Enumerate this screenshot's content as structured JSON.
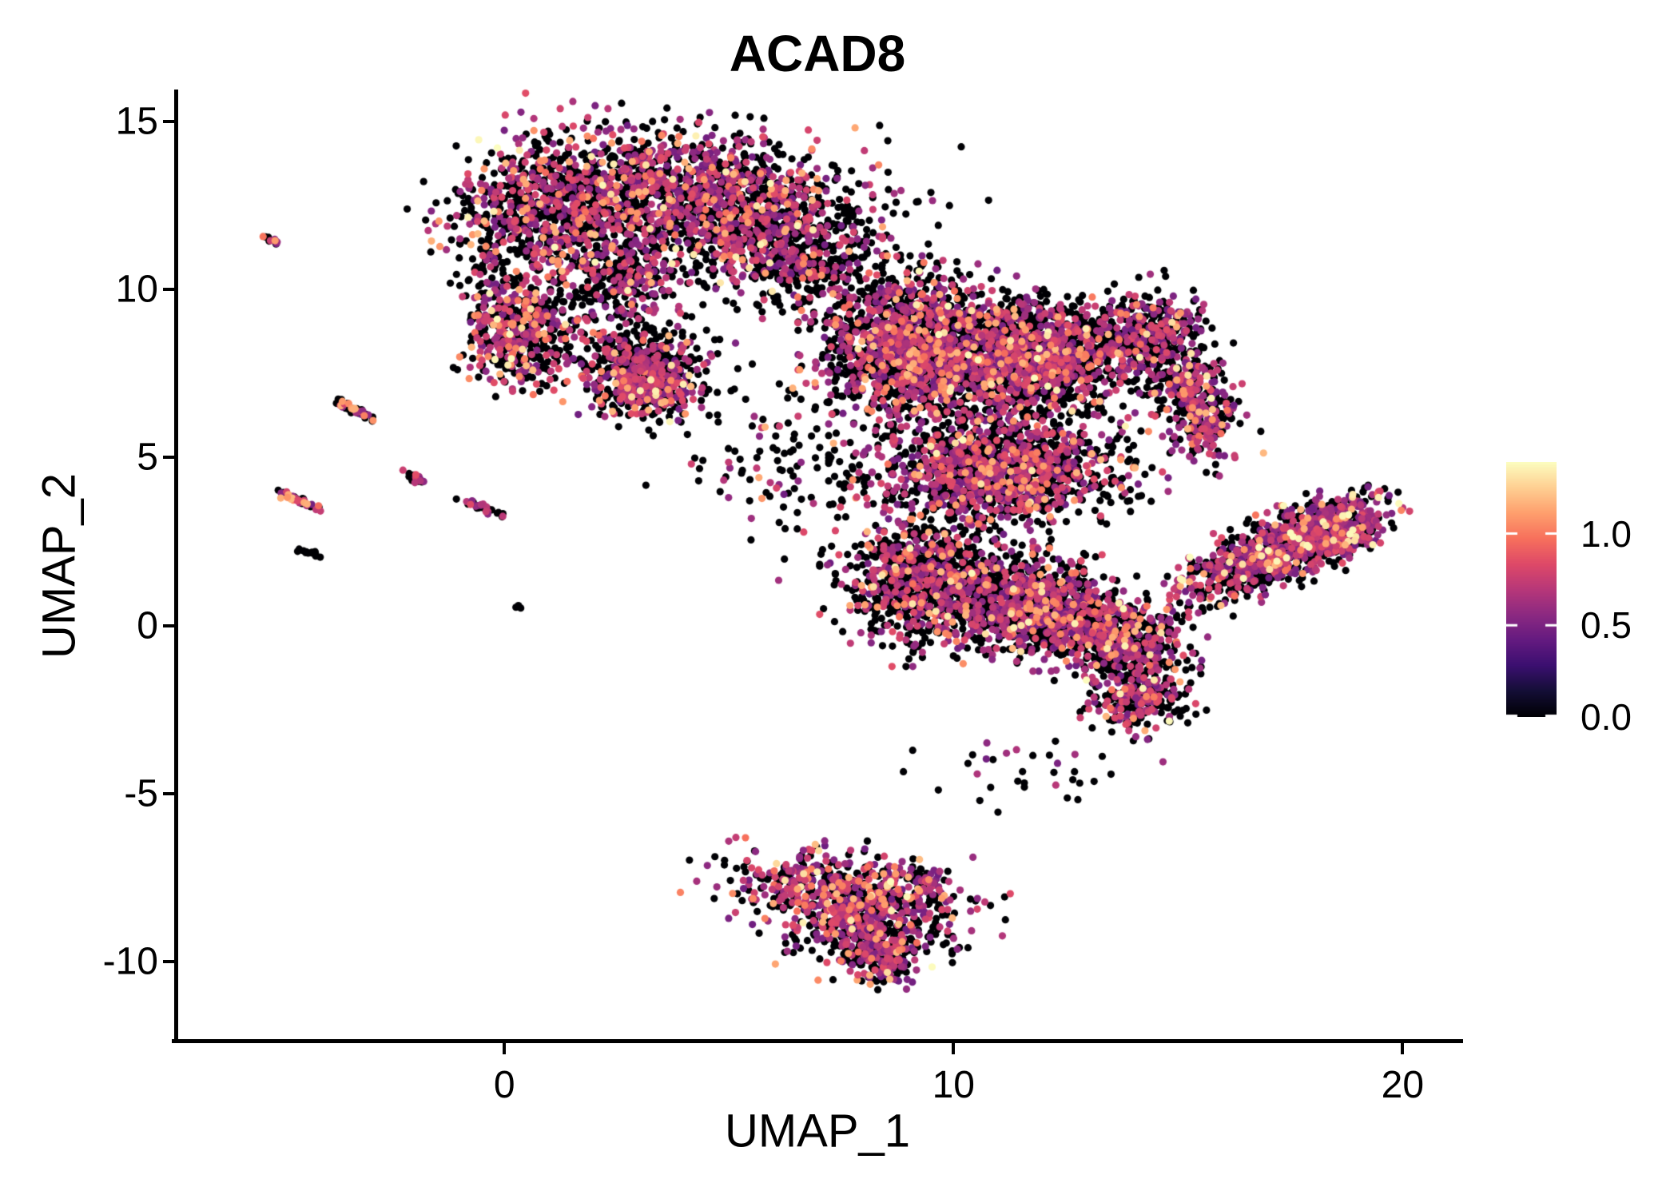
{
  "title": "ACAD8",
  "axes": {
    "x": {
      "label": "UMAP_1",
      "ticks": [
        0,
        10,
        20
      ]
    },
    "y": {
      "label": "UMAP_2",
      "ticks": [
        15,
        10,
        5,
        0,
        -5,
        -10
      ]
    }
  },
  "legend": {
    "tick_labels": [
      "1.0",
      "0.5",
      "0.0"
    ],
    "tick_values": [
      1.0,
      0.5,
      0.0
    ],
    "max_value": 1.39,
    "colormap": "magma"
  },
  "chart_data": {
    "type": "scatter",
    "title": "ACAD8",
    "xlabel": "UMAP_1",
    "ylabel": "UMAP_2",
    "xlim": [
      -7.37,
      21.31
    ],
    "ylim": [
      -12.38,
      15.95
    ],
    "grid": false,
    "legend_position": "right",
    "point_radius": 4.6,
    "color_scale": {
      "value_range": [
        0,
        1.39
      ],
      "stops": [
        [
          0.0,
          [
            0,
            0,
            4
          ]
        ],
        [
          0.1,
          [
            20,
            14,
            54
          ]
        ],
        [
          0.2,
          [
            59,
            15,
            112
          ]
        ],
        [
          0.3,
          [
            100,
            26,
            128
          ]
        ],
        [
          0.4,
          [
            140,
            41,
            129
          ]
        ],
        [
          0.5,
          [
            183,
            55,
            121
          ]
        ],
        [
          0.6,
          [
            222,
            73,
            104
          ]
        ],
        [
          0.7,
          [
            247,
            112,
            92
          ]
        ],
        [
          0.8,
          [
            254,
            159,
            109
          ]
        ],
        [
          0.9,
          [
            254,
            207,
            146
          ]
        ],
        [
          1.0,
          [
            252,
            253,
            191
          ]
        ]
      ]
    },
    "expression_bins": {
      "zero": [
        0,
        0
      ],
      "mid": [
        0.45,
        0.85
      ],
      "high": [
        0.95,
        1.2
      ],
      "top": [
        1.28,
        1.39
      ]
    },
    "seed": 42,
    "clusters": [
      {
        "name": "top-main-left",
        "cx": 1.0,
        "cy": 12.3,
        "sx": 1.15,
        "sy": 1.1,
        "rot": 0,
        "n": 900,
        "mix": [
          0.52,
          0.4,
          0.07,
          0.01
        ]
      },
      {
        "name": "top-main-right",
        "cx": 4.3,
        "cy": 12.9,
        "sx": 1.5,
        "sy": 0.85,
        "rot": -8,
        "n": 1100,
        "mix": [
          0.52,
          0.4,
          0.07,
          0.01
        ]
      },
      {
        "name": "top-right-lobe",
        "cx": 5.9,
        "cy": 11.4,
        "sx": 0.9,
        "sy": 0.8,
        "rot": 0,
        "n": 480,
        "mix": [
          0.6,
          0.34,
          0.05,
          0.01
        ]
      },
      {
        "name": "top-lower-tail",
        "cx": 2.6,
        "cy": 10.4,
        "sx": 0.75,
        "sy": 0.7,
        "rot": 0,
        "n": 320,
        "mix": [
          0.55,
          0.38,
          0.06,
          0.01
        ]
      },
      {
        "name": "left-small-upper",
        "cx": 0.3,
        "cy": 9.4,
        "sx": 0.5,
        "sy": 0.45,
        "rot": 0,
        "n": 160,
        "mix": [
          0.52,
          0.33,
          0.13,
          0.02
        ]
      },
      {
        "name": "left-small-lower",
        "cx": 0.35,
        "cy": 8.3,
        "sx": 0.55,
        "sy": 0.6,
        "rot": 0,
        "n": 280,
        "mix": [
          0.52,
          0.33,
          0.13,
          0.02
        ]
      },
      {
        "name": "mid-blob",
        "cx": 3.1,
        "cy": 7.3,
        "sx": 0.6,
        "sy": 0.55,
        "rot": -15,
        "n": 600,
        "mix": [
          0.55,
          0.4,
          0.04,
          0.01
        ]
      },
      {
        "name": "mid-blob-halo",
        "cx": 3.0,
        "cy": 8.3,
        "sx": 0.9,
        "sy": 0.5,
        "rot": 0,
        "n": 140,
        "mix": [
          0.6,
          0.36,
          0.04,
          0.0
        ]
      },
      {
        "name": "bridge-top",
        "cx": 7.3,
        "cy": 10.9,
        "sx": 1.0,
        "sy": 0.85,
        "rot": -20,
        "n": 170,
        "mix": [
          0.62,
          0.33,
          0.05,
          0.0
        ]
      },
      {
        "name": "central-upper-left",
        "cx": 9.2,
        "cy": 8.2,
        "sx": 0.95,
        "sy": 1.0,
        "rot": 0,
        "n": 1500,
        "mix": [
          0.52,
          0.4,
          0.07,
          0.01
        ]
      },
      {
        "name": "central-upper-mid",
        "cx": 11.7,
        "cy": 7.9,
        "sx": 1.05,
        "sy": 0.9,
        "rot": 0,
        "n": 1450,
        "mix": [
          0.56,
          0.37,
          0.06,
          0.01
        ]
      },
      {
        "name": "central-arc-top",
        "cx": 14.2,
        "cy": 8.6,
        "sx": 0.7,
        "sy": 0.6,
        "rot": 20,
        "n": 450,
        "mix": [
          0.62,
          0.33,
          0.05,
          0.0
        ]
      },
      {
        "name": "central-arc-right",
        "cx": 15.4,
        "cy": 6.7,
        "sx": 0.45,
        "sy": 0.85,
        "rot": 10,
        "n": 380,
        "mix": [
          0.5,
          0.44,
          0.05,
          0.01
        ]
      },
      {
        "name": "central-mid-band",
        "cx": 11.0,
        "cy": 4.6,
        "sx": 1.35,
        "sy": 0.75,
        "rot": 0,
        "n": 1350,
        "mix": [
          0.55,
          0.38,
          0.06,
          0.01
        ]
      },
      {
        "name": "central-lower-left",
        "cx": 9.4,
        "cy": 1.3,
        "sx": 0.85,
        "sy": 0.9,
        "rot": 0,
        "n": 1000,
        "mix": [
          0.58,
          0.36,
          0.05,
          0.01
        ]
      },
      {
        "name": "central-lower-mid",
        "cx": 11.7,
        "cy": 0.6,
        "sx": 0.85,
        "sy": 0.7,
        "rot": 0,
        "n": 820,
        "mix": [
          0.56,
          0.38,
          0.05,
          0.01
        ]
      },
      {
        "name": "central-lower-right",
        "cx": 13.5,
        "cy": -0.4,
        "sx": 0.8,
        "sy": 0.6,
        "rot": -20,
        "n": 700,
        "mix": [
          0.55,
          0.39,
          0.05,
          0.01
        ]
      },
      {
        "name": "central-dip-tail",
        "cx": 14.2,
        "cy": -2.2,
        "sx": 0.5,
        "sy": 0.5,
        "rot": -30,
        "n": 260,
        "mix": [
          0.55,
          0.4,
          0.04,
          0.01
        ]
      },
      {
        "name": "gap-sparse-left",
        "cx": 6.4,
        "cy": 5.2,
        "sx": 1.3,
        "sy": 1.5,
        "rot": 0,
        "n": 140,
        "mix": [
          0.7,
          0.27,
          0.03,
          0.0
        ]
      },
      {
        "name": "gap-sparse-upper",
        "cx": 8.0,
        "cy": 9.6,
        "sx": 1.2,
        "sy": 0.8,
        "rot": 0,
        "n": 110,
        "mix": [
          0.68,
          0.28,
          0.04,
          0.0
        ]
      },
      {
        "name": "below-central-sparse",
        "cx": 11.5,
        "cy": -4.2,
        "sx": 1.2,
        "sy": 0.6,
        "rot": 0,
        "n": 35,
        "mix": [
          0.75,
          0.22,
          0.03,
          0.0
        ]
      },
      {
        "name": "right-wing",
        "cx": 17.2,
        "cy": 2.2,
        "sx": 1.15,
        "sy": 0.42,
        "rot": 30,
        "n": 950,
        "mix": [
          0.5,
          0.44,
          0.04,
          0.02
        ]
      },
      {
        "name": "right-wing-tip",
        "cx": 18.6,
        "cy": 3.0,
        "sx": 0.5,
        "sy": 0.45,
        "rot": 30,
        "n": 280,
        "mix": [
          0.42,
          0.5,
          0.05,
          0.03
        ]
      },
      {
        "name": "bottom-band",
        "cx": 7.6,
        "cy": -7.9,
        "sx": 1.3,
        "sy": 0.55,
        "rot": -8,
        "n": 560,
        "mix": [
          0.47,
          0.43,
          0.08,
          0.02
        ]
      },
      {
        "name": "bottom-mid",
        "cx": 8.0,
        "cy": -9.0,
        "sx": 0.85,
        "sy": 0.5,
        "rot": -10,
        "n": 380,
        "mix": [
          0.47,
          0.44,
          0.08,
          0.01
        ]
      },
      {
        "name": "bottom-tip",
        "cx": 8.35,
        "cy": -10.0,
        "sx": 0.42,
        "sy": 0.38,
        "rot": -15,
        "n": 150,
        "mix": [
          0.5,
          0.42,
          0.06,
          0.02
        ]
      },
      {
        "name": "bottom-tail",
        "cx": 9.3,
        "cy": -7.6,
        "sx": 0.32,
        "sy": 0.18,
        "rot": -20,
        "n": 50,
        "mix": [
          0.6,
          0.35,
          0.05,
          0.0
        ]
      },
      {
        "name": "streak-orange-top",
        "cx": -5.15,
        "cy": 11.45,
        "sx": 0.14,
        "sy": 0.045,
        "rot": -30,
        "n": 10,
        "mix": [
          0.35,
          0.25,
          0.4,
          0.0
        ]
      },
      {
        "name": "streak-a",
        "cx": -3.28,
        "cy": 6.4,
        "sx": 0.33,
        "sy": 0.055,
        "rot": -33,
        "n": 45,
        "mix": [
          0.5,
          0.3,
          0.2,
          0.0
        ]
      },
      {
        "name": "streak-b",
        "cx": -4.55,
        "cy": 3.7,
        "sx": 0.28,
        "sy": 0.055,
        "rot": -30,
        "n": 38,
        "mix": [
          0.38,
          0.34,
          0.28,
          0.0
        ]
      },
      {
        "name": "streak-c",
        "cx": -2.0,
        "cy": 4.38,
        "sx": 0.17,
        "sy": 0.07,
        "rot": -30,
        "n": 22,
        "mix": [
          0.6,
          0.4,
          0.0,
          0.0
        ]
      },
      {
        "name": "streak-d",
        "cx": -0.45,
        "cy": 3.5,
        "sx": 0.24,
        "sy": 0.055,
        "rot": -25,
        "n": 30,
        "mix": [
          0.62,
          0.38,
          0.0,
          0.0
        ]
      },
      {
        "name": "streak-black",
        "cx": -4.32,
        "cy": 2.17,
        "sx": 0.15,
        "sy": 0.05,
        "rot": -20,
        "n": 15,
        "mix": [
          1.0,
          0.0,
          0.0,
          0.0
        ]
      },
      {
        "name": "lone-dot",
        "cx": 0.3,
        "cy": 0.55,
        "sx": 0.05,
        "sy": 0.04,
        "rot": 0,
        "n": 3,
        "mix": [
          1.0,
          0.0,
          0.0,
          0.0
        ]
      },
      {
        "name": "top-right-sparse",
        "cx": 6.5,
        "cy": 12.5,
        "sx": 1.6,
        "sy": 1.0,
        "rot": 0,
        "n": 90,
        "mix": [
          0.7,
          0.26,
          0.04,
          0.0
        ]
      },
      {
        "name": "left-trail-sparse",
        "cx": -0.2,
        "cy": 10.2,
        "sx": 0.5,
        "sy": 0.7,
        "rot": 20,
        "n": 60,
        "mix": [
          0.65,
          0.3,
          0.05,
          0.0
        ]
      }
    ]
  }
}
